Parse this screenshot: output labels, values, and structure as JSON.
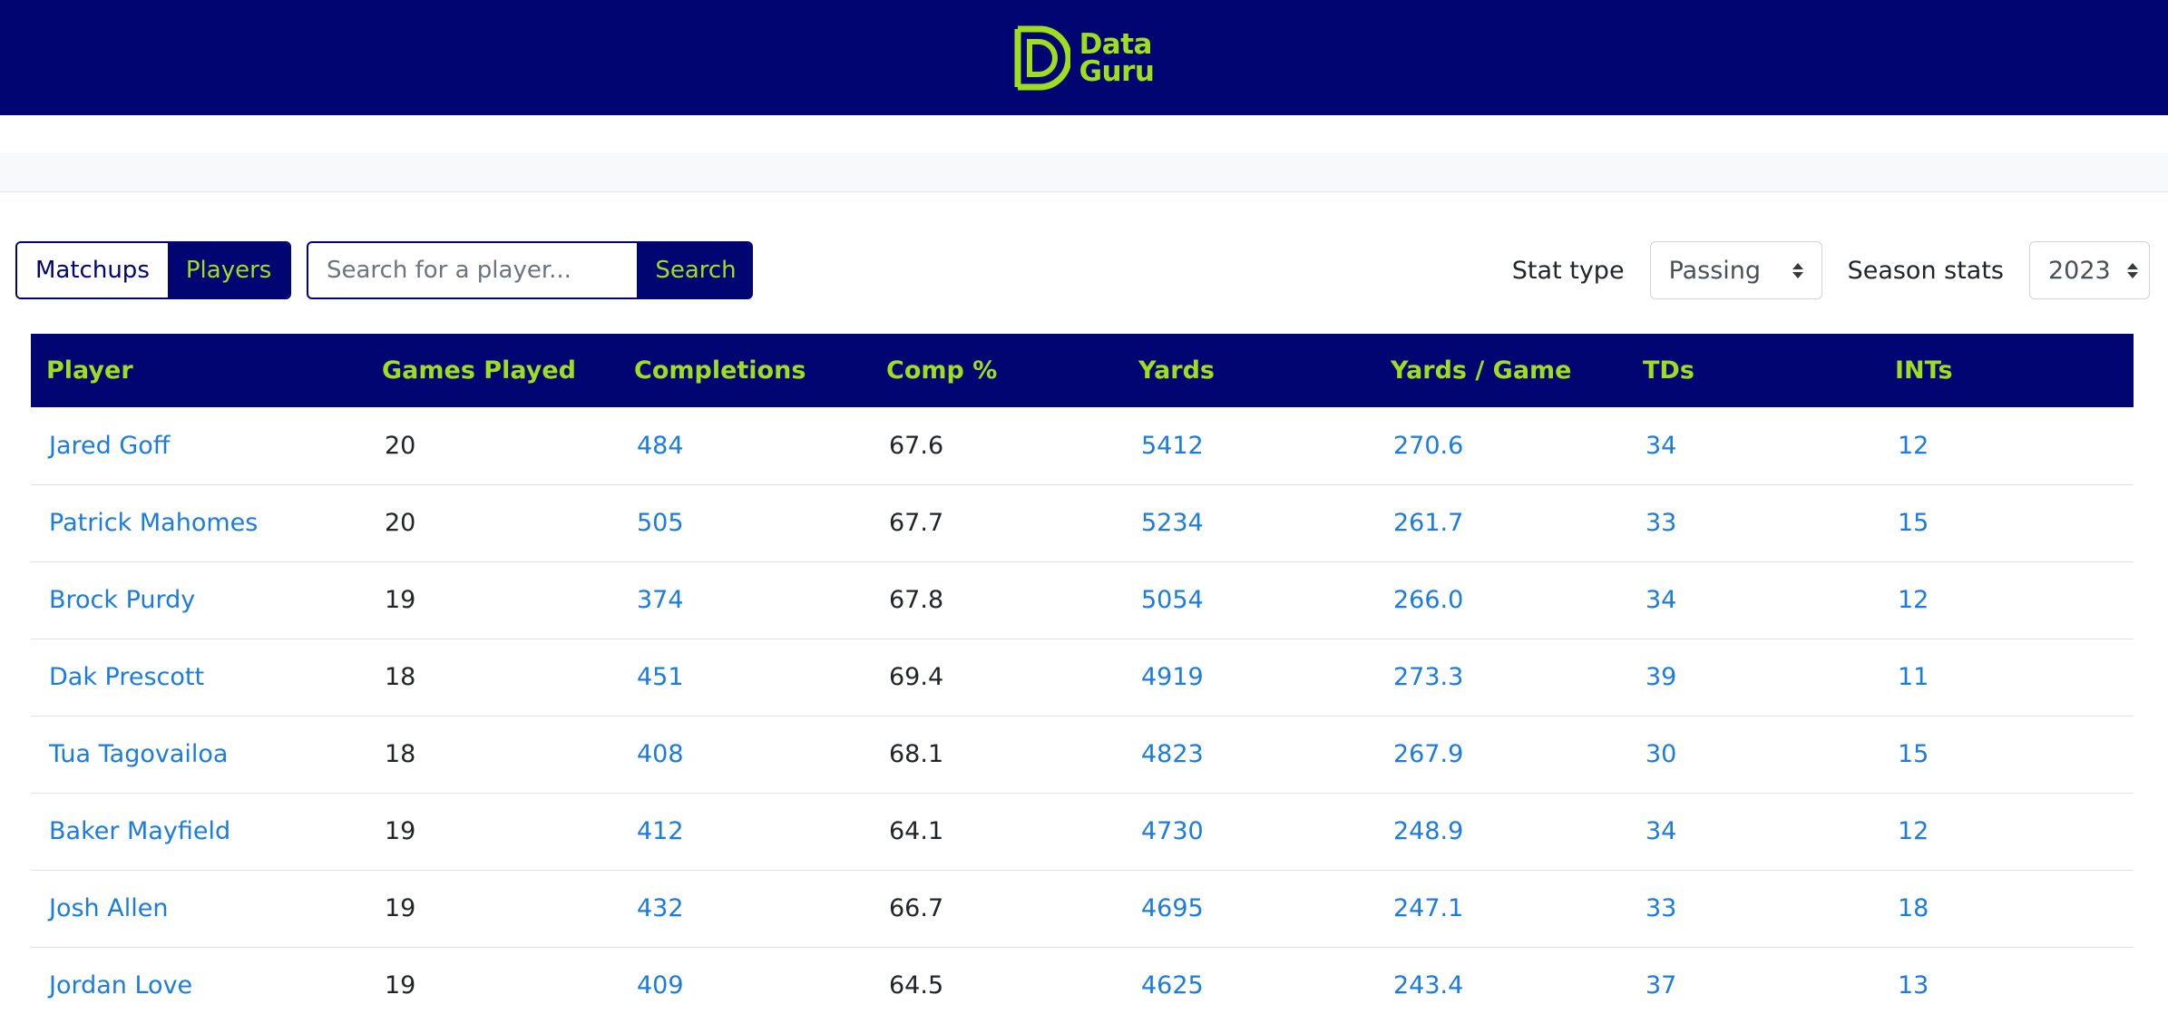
{
  "header": {
    "logo_line1": "Data",
    "logo_line2": "Guru",
    "brand_color": "#9ddf1f",
    "background_color": "#010572"
  },
  "toggle": {
    "matchups_label": "Matchups",
    "players_label": "Players",
    "active": "Players"
  },
  "search": {
    "placeholder": "Search for a player...",
    "value": "",
    "button_label": "Search"
  },
  "filters": {
    "stat_type_label": "Stat type",
    "stat_type_value": "Passing",
    "season_label": "Season stats",
    "season_value": "2023"
  },
  "table": {
    "columns": [
      "Player",
      "Games Played",
      "Completions",
      "Comp %",
      "Yards",
      "Yards / Game",
      "TDs",
      "INTs"
    ],
    "rows": [
      [
        "Jared Goff",
        "20",
        "484",
        "67.6",
        "5412",
        "270.6",
        "34",
        "12"
      ],
      [
        "Patrick Mahomes",
        "20",
        "505",
        "67.7",
        "5234",
        "261.7",
        "33",
        "15"
      ],
      [
        "Brock Purdy",
        "19",
        "374",
        "67.8",
        "5054",
        "266.0",
        "34",
        "12"
      ],
      [
        "Dak Prescott",
        "18",
        "451",
        "69.4",
        "4919",
        "273.3",
        "39",
        "11"
      ],
      [
        "Tua Tagovailoa",
        "18",
        "408",
        "68.1",
        "4823",
        "267.9",
        "30",
        "15"
      ],
      [
        "Baker Mayfield",
        "19",
        "412",
        "64.1",
        "4730",
        "248.9",
        "34",
        "12"
      ],
      [
        "Josh Allen",
        "19",
        "432",
        "66.7",
        "4695",
        "247.1",
        "33",
        "18"
      ],
      [
        "Jordan Love",
        "19",
        "409",
        "64.5",
        "4625",
        "243.4",
        "37",
        "13"
      ]
    ]
  }
}
